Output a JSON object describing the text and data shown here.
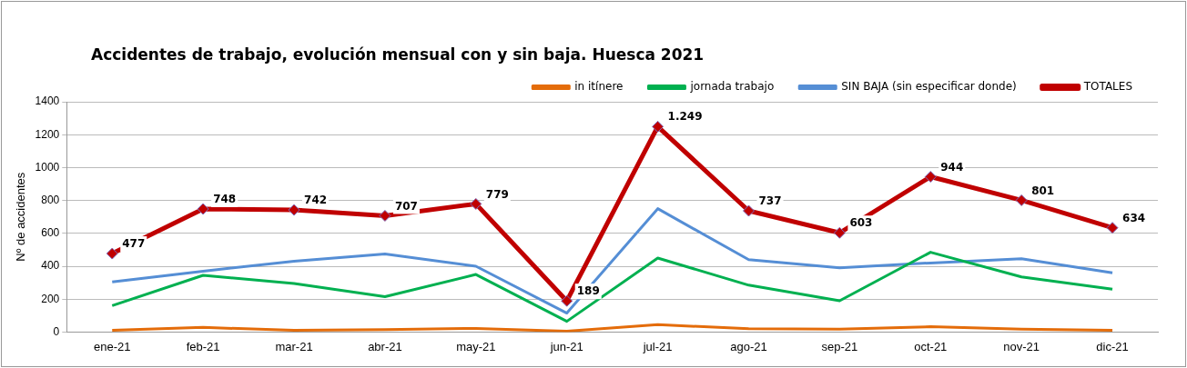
{
  "chart_data": {
    "type": "line",
    "title": "Accidentes de trabajo, evolución mensual con y sin baja. Huesca 2021",
    "ylabel": "Nº de accidentes",
    "categories": [
      "ene-21",
      "feb-21",
      "mar-21",
      "abr-21",
      "may-21",
      "jun-21",
      "jul-21",
      "ago-21",
      "sep-21",
      "oct-21",
      "nov-21",
      "dic-21"
    ],
    "series": [
      {
        "name": "in itínere",
        "color": "#e46c0a",
        "marker": "none",
        "values": [
          10,
          28,
          10,
          15,
          22,
          5,
          45,
          20,
          18,
          32,
          18,
          10
        ]
      },
      {
        "name": "jornada trabajo",
        "color": "#00b050",
        "marker": "none",
        "values": [
          160,
          345,
          295,
          215,
          350,
          65,
          450,
          285,
          190,
          485,
          335,
          260
        ]
      },
      {
        "name": "SIN BAJA (sin especificar donde)",
        "color": "#558ed5",
        "marker": "none",
        "values": [
          305,
          370,
          430,
          475,
          400,
          115,
          750,
          440,
          390,
          420,
          445,
          360
        ]
      },
      {
        "name": "TOTALES",
        "color": "#c00000",
        "marker": "diamond",
        "values": [
          477,
          748,
          742,
          707,
          779,
          189,
          1249,
          737,
          603,
          944,
          801,
          634
        ],
        "value_labels": [
          "477",
          "748",
          "742",
          "707",
          "779",
          "189",
          "1.249",
          "737",
          "603",
          "944",
          "801",
          "634"
        ]
      }
    ],
    "ylim": [
      0,
      1400
    ],
    "yticks": [
      0,
      200,
      400,
      600,
      800,
      1000,
      1200,
      1400
    ],
    "grid": "y",
    "legend": "top right",
    "line_style": "solid"
  }
}
